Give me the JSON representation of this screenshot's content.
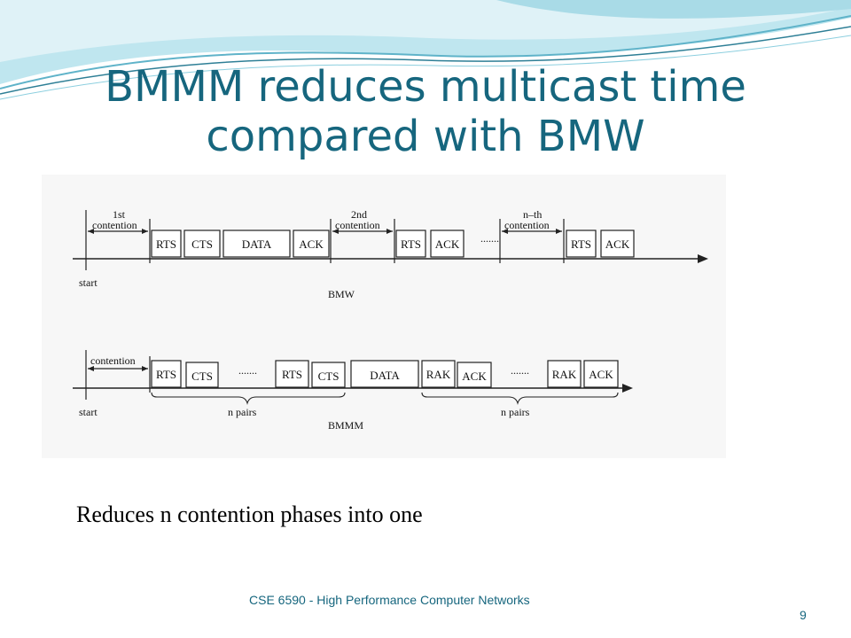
{
  "slide": {
    "title": "BMMM reduces multicast time compared with BMW",
    "caption": "Reduces n contention phases into one",
    "footer": "CSE 6590 - High Performance Computer Networks",
    "page_number": "9"
  },
  "diagram": {
    "bmw": {
      "label": "BMW",
      "start_label": "start",
      "contention_labels": [
        [
          "1st",
          "contention"
        ],
        [
          "2nd",
          "contention"
        ],
        [
          "n–th",
          "contention"
        ]
      ],
      "frames": [
        "RTS",
        "CTS",
        "DATA",
        "ACK",
        "RTS",
        "ACK",
        "RTS",
        "ACK"
      ],
      "ellipsis": "......."
    },
    "bmmm": {
      "label": "BMMM",
      "start_label": "start",
      "contention_label": "contention",
      "frames": [
        "RTS",
        "CTS",
        "RTS",
        "CTS",
        "DATA",
        "RAK",
        "ACK",
        "RAK",
        "ACK"
      ],
      "ellipsis": [
        ".......",
        "......."
      ],
      "pairs_labels": [
        "n pairs",
        "n pairs"
      ]
    }
  },
  "colors": {
    "title": "#16667e",
    "wave_light": "#bfe6ef",
    "wave_mid": "#5fb3c9",
    "wave_dark": "#2e7f96"
  }
}
